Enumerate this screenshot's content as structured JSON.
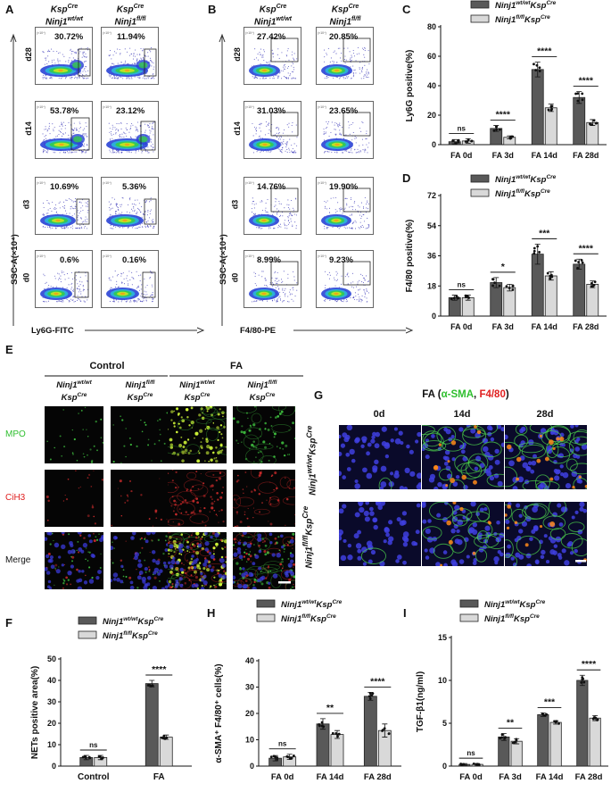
{
  "panels": {
    "A": {
      "letter": "A",
      "col_heads": [
        {
          "base": "Ksp",
          "sup": "Cre",
          "line2": "Ninj1",
          "line2sup": "wt/wt"
        },
        {
          "base": "Ksp",
          "sup": "Cre",
          "line2": "Ninj1",
          "line2sup": "fl/fl"
        }
      ],
      "rows": [
        {
          "label": "d28",
          "values": [
            "30.72%",
            "11.94%"
          ]
        },
        {
          "label": "d14",
          "values": [
            "53.78%",
            "23.12%"
          ]
        },
        {
          "label": "d3",
          "values": [
            "10.69%",
            "5.36%"
          ]
        },
        {
          "label": "d0",
          "values": [
            "0.6%",
            "0.16%"
          ]
        }
      ],
      "y_axis": "SSC-A(×10⁴)",
      "x_axis": "Ly6G-FITC"
    },
    "B": {
      "letter": "B",
      "col_heads": [
        {
          "base": "Ksp",
          "sup": "Cre",
          "line2": "Ninj1",
          "line2sup": "wt/wt"
        },
        {
          "base": "Ksp",
          "sup": "Cre",
          "line2": "Ninj1",
          "line2sup": "fl/fl"
        }
      ],
      "rows": [
        {
          "label": "d28",
          "values": [
            "27.42%",
            "20.85%"
          ]
        },
        {
          "label": "d14",
          "values": [
            "31.03%",
            "23.65%"
          ]
        },
        {
          "label": "d3",
          "values": [
            "14.76%",
            "19.90%"
          ]
        },
        {
          "label": "d0",
          "values": [
            "8.99%",
            "9.23%"
          ]
        }
      ],
      "y_axis": "SSC-A(×10⁴)",
      "x_axis": "F4/80-PE"
    },
    "E": {
      "letter": "E",
      "groups": [
        "Control",
        "FA"
      ],
      "col_heads": [
        {
          "l1": "Ninj1",
          "l1sup": "wt/wt",
          "l2": "Ksp",
          "l2sup": "Cre"
        },
        {
          "l1": "Ninj1",
          "l1sup": "fl/fl",
          "l2": "Ksp",
          "l2sup": "Cre"
        },
        {
          "l1": "Ninj1",
          "l1sup": "wt/wt",
          "l2": "Ksp",
          "l2sup": "Cre"
        },
        {
          "l1": "Ninj1",
          "l1sup": "fl/fl",
          "l2": "Ksp",
          "l2sup": "Cre"
        }
      ],
      "rows": [
        {
          "label": "MPO",
          "color": "#2fbf2f"
        },
        {
          "label": "CiH3",
          "color": "#e02020"
        },
        {
          "label": "Merge",
          "color": "#111111"
        }
      ]
    },
    "G": {
      "letter": "G",
      "title_prefix": "FA (",
      "title_green": "α-SMA",
      "title_sep": ", ",
      "title_red": "F4/80",
      "title_suffix": ")",
      "cols": [
        "0d",
        "14d",
        "28d"
      ],
      "rows": [
        {
          "base": "Ninj1",
          "sup": "wt/wt",
          "base2": "Ksp",
          "sup2": "Cre"
        },
        {
          "base": "Ninj1",
          "sup": "fl/fl",
          "base2": "Ksp",
          "sup2": "Cre"
        }
      ]
    }
  },
  "legend": {
    "wt": {
      "base": "Ninj1",
      "sup": "wt/wt",
      "base2": "Ksp",
      "sup2": "Cre",
      "color": "#595959"
    },
    "fl": {
      "base": "Ninj1",
      "sup": "fl/fl",
      "base2": "Ksp",
      "sup2": "Cre",
      "color": "#d9d9d9"
    }
  },
  "chart_data": [
    {
      "id": "C",
      "letter": "C",
      "type": "bar",
      "ylabel": "Ly6G positive(%)",
      "ylim": [
        0,
        80
      ],
      "yticks": [
        0,
        20,
        40,
        60,
        80
      ],
      "categories": [
        "FA 0d",
        "FA 3d",
        "FA 14d",
        "FA 28d"
      ],
      "series": [
        {
          "name": "Ninj1wt/wtKspCre",
          "values": [
            2,
            11,
            51,
            32
          ],
          "errors": [
            1.5,
            2,
            5,
            4
          ]
        },
        {
          "name": "Ninj1fl/flKspCre",
          "values": [
            2.5,
            5,
            25,
            15
          ],
          "errors": [
            1.5,
            1,
            2.5,
            2
          ]
        }
      ],
      "sig": [
        "ns",
        "****",
        "****",
        "****"
      ]
    },
    {
      "id": "D",
      "letter": "D",
      "type": "bar",
      "ylabel": "F4/80 positive(%)",
      "ylim": [
        0,
        72
      ],
      "yticks": [
        0,
        18,
        36,
        54,
        72
      ],
      "categories": [
        "FA 0d",
        "FA 3d",
        "FA 14d",
        "FA 28d"
      ],
      "series": [
        {
          "name": "Ninj1wt/wtKspCre",
          "values": [
            11,
            20,
            37,
            31
          ],
          "errors": [
            1.5,
            3,
            6,
            3
          ]
        },
        {
          "name": "Ninj1fl/flKspCre",
          "values": [
            11,
            17,
            24,
            19
          ],
          "errors": [
            1.5,
            2,
            2.5,
            2
          ]
        }
      ],
      "sig": [
        "ns",
        "*",
        "***",
        "****"
      ]
    },
    {
      "id": "F",
      "letter": "F",
      "type": "bar",
      "ylabel": "NETs positive area(%)",
      "ylim": [
        0,
        50
      ],
      "yticks": [
        0,
        10,
        20,
        30,
        40,
        50
      ],
      "categories": [
        "Control",
        "FA"
      ],
      "series": [
        {
          "name": "Ninj1wt/wtKspCre",
          "values": [
            4,
            38.5
          ],
          "errors": [
            1,
            1.5
          ]
        },
        {
          "name": "Ninj1fl/flKspCre",
          "values": [
            4,
            13.5
          ],
          "errors": [
            1,
            1
          ]
        }
      ],
      "sig": [
        "ns",
        "****"
      ]
    },
    {
      "id": "H",
      "letter": "H",
      "type": "bar",
      "ylabel": "α-SMA⁺ F4/80⁺ cells(%)",
      "ylim": [
        0,
        40
      ],
      "yticks": [
        0,
        10,
        20,
        30,
        40
      ],
      "categories": [
        "FA 0d",
        "FA 14d",
        "FA 28d"
      ],
      "series": [
        {
          "name": "Ninj1wt/wtKspCre",
          "values": [
            3,
            16,
            26.5
          ],
          "errors": [
            1,
            2,
            1.5
          ]
        },
        {
          "name": "Ninj1fl/flKspCre",
          "values": [
            3.5,
            12,
            13.5
          ],
          "errors": [
            1,
            1.5,
            2.5
          ]
        }
      ],
      "sig": [
        "ns",
        "**",
        "****"
      ]
    },
    {
      "id": "I",
      "letter": "I",
      "type": "bar",
      "ylabel": "TGF-β1(ng/ml)",
      "ylim": [
        0,
        15
      ],
      "yticks": [
        0,
        5,
        10,
        15
      ],
      "categories": [
        "FA 0d",
        "FA 3d",
        "FA 14d",
        "FA 28d"
      ],
      "series": [
        {
          "name": "Ninj1wt/wtKspCre",
          "values": [
            0.2,
            3.4,
            6,
            10
          ],
          "errors": [
            0.1,
            0.4,
            0.2,
            0.6
          ]
        },
        {
          "name": "Ninj1fl/flKspCre",
          "values": [
            0.2,
            2.9,
            5.1,
            5.6
          ],
          "errors": [
            0.1,
            0.3,
            0.2,
            0.3
          ]
        }
      ],
      "sig": [
        "ns",
        "**",
        "***",
        "****"
      ]
    }
  ]
}
